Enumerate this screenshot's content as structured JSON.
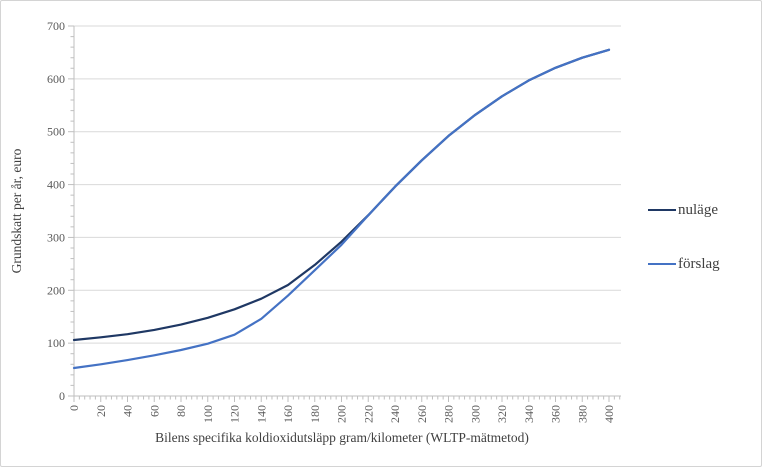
{
  "figure": {
    "background": "#ffffff",
    "border_color": "#d4d4d4"
  },
  "chart_data": {
    "type": "line",
    "title": "",
    "xlabel": "Bilens specifika koldioxidutsläpp gram/kilometer (WLTP-mätmetod)",
    "ylabel": "Grundskatt per år, euro",
    "xlim": [
      0,
      400
    ],
    "ylim": [
      0,
      700
    ],
    "x_ticks": [
      0,
      20,
      40,
      60,
      80,
      100,
      120,
      140,
      160,
      180,
      200,
      220,
      240,
      260,
      280,
      300,
      320,
      340,
      360,
      380,
      400
    ],
    "y_ticks": [
      0,
      100,
      200,
      300,
      400,
      500,
      600,
      700
    ],
    "x_minor_step": 4,
    "y_minor_step": 20,
    "grid": "horizontal",
    "gridline_color": "#d9d9d9",
    "axis_color": "#bfbfbf",
    "legend_position": "right",
    "x": [
      0,
      20,
      40,
      60,
      80,
      100,
      120,
      140,
      160,
      180,
      200,
      220,
      240,
      260,
      280,
      300,
      320,
      340,
      360,
      380,
      400
    ],
    "series": [
      {
        "name": "nuläge",
        "color": "#1F3864",
        "values": [
          106,
          111,
          117,
          125,
          135,
          148,
          164,
          184,
          210,
          248,
          292,
          342,
          396,
          446,
          492,
          532,
          567,
          597,
          621,
          640,
          655
        ]
      },
      {
        "name": "förslag",
        "color": "#4472C4",
        "values": [
          53,
          60,
          68,
          77,
          87,
          99,
          116,
          146,
          190,
          238,
          286,
          342,
          396,
          446,
          492,
          532,
          567,
          597,
          621,
          640,
          655
        ]
      }
    ]
  }
}
